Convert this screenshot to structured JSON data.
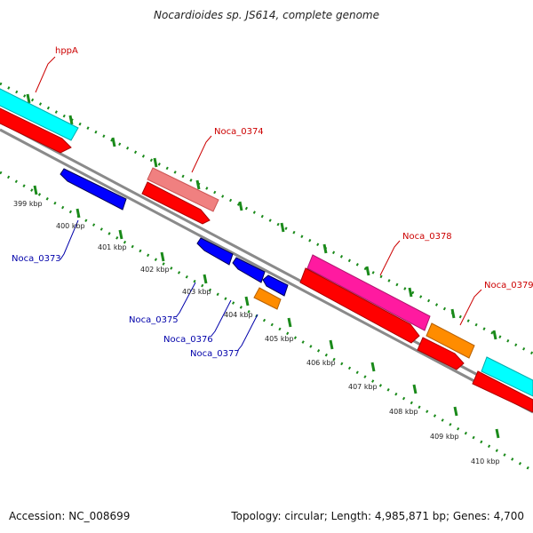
{
  "title": "Nocardioides sp. JS614, complete genome",
  "footer": {
    "accession": "Accession: NC_008699",
    "summary": "Topology: circular; Length: 4,985,871 bp; Genes: 4,700"
  },
  "colors": {
    "backbone": "#7a7a7a",
    "tick": "#1a8a1a",
    "label_upper": "#cc0000",
    "label_lower": "#0000aa",
    "gene_cds": "#ff0000",
    "gene_cyan": "#00ffff",
    "gene_pink": "#f08080",
    "gene_magenta": "#ff1aa0",
    "gene_orange": "#ff8c00",
    "gene_blue": "#0000ff"
  },
  "kbp_labels": [
    "399 kbp",
    "400 kbp",
    "401 kbp",
    "402 kbp",
    "403 kbp",
    "404 kbp",
    "405 kbp",
    "406 kbp",
    "407 kbp",
    "408 kbp",
    "409 kbp",
    "410 kbp"
  ],
  "gene_labels_upper": [
    "hppA",
    "Noca_0374",
    "Noca_0378",
    "Noca_0379"
  ],
  "gene_labels_lower": [
    "Noca_0373",
    "Noca_0375",
    "Noca_0376",
    "Noca_0377"
  ]
}
